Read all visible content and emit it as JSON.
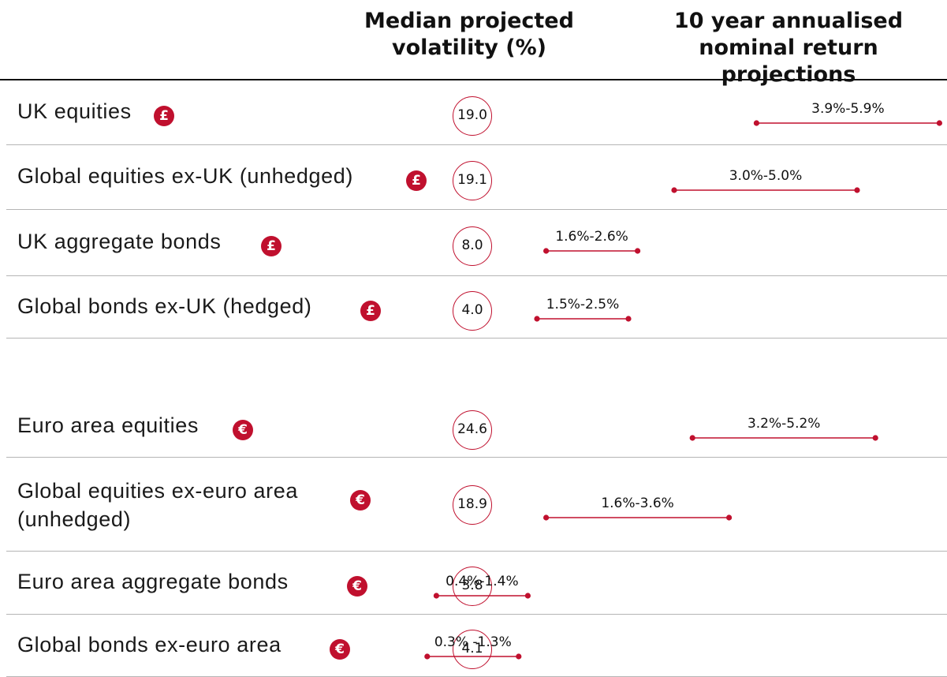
{
  "header": {
    "volatility": [
      "Median projected",
      "volatility (%)"
    ],
    "returns": [
      "10 year annualised",
      "nominal return projections"
    ]
  },
  "colors": {
    "accent": "#c0102e",
    "rule": "#b5b5b5"
  },
  "currency_symbols": {
    "gbp": "£",
    "eur": "€"
  },
  "chart_data": {
    "type": "table",
    "columns": [
      "Median projected volatility (%)",
      "10 year annualised nominal return projections"
    ],
    "groups": [
      {
        "currency": "gbp",
        "rows": [
          {
            "asset": "UK equities",
            "volatility": "19.0",
            "low": 3.9,
            "high": 5.9,
            "range_label": "3.9%-5.9%"
          },
          {
            "asset": "Global equities ex-UK (unhedged)",
            "volatility": "19.1",
            "low": 3.0,
            "high": 5.0,
            "range_label": "3.0%-5.0%"
          },
          {
            "asset": "UK aggregate bonds",
            "volatility": "8.0",
            "low": 1.6,
            "high": 2.6,
            "range_label": "1.6%-2.6%"
          },
          {
            "asset": "Global bonds ex-UK (hedged)",
            "volatility": "4.0",
            "low": 1.5,
            "high": 2.5,
            "range_label": "1.5%-2.5%"
          }
        ]
      },
      {
        "currency": "eur",
        "rows": [
          {
            "asset": "Euro area equities",
            "volatility": "24.6",
            "low": 3.2,
            "high": 5.2,
            "range_label": "3.2%-5.2%"
          },
          {
            "asset": "Global equities ex-euro area",
            "asset_line2": "(unhedged)",
            "volatility": "18.9",
            "low": 1.6,
            "high": 3.6,
            "range_label": "1.6%-3.6%"
          },
          {
            "asset": "Euro area aggregate bonds",
            "volatility": "3.8",
            "low": 0.4,
            "high": 1.4,
            "range_label": "0.4%-1.4%"
          },
          {
            "asset": "Global bonds ex-euro area",
            "volatility": "4.1",
            "low": 0.3,
            "high": 1.3,
            "range_label": "0.3% -1.3%"
          }
        ]
      }
    ]
  }
}
